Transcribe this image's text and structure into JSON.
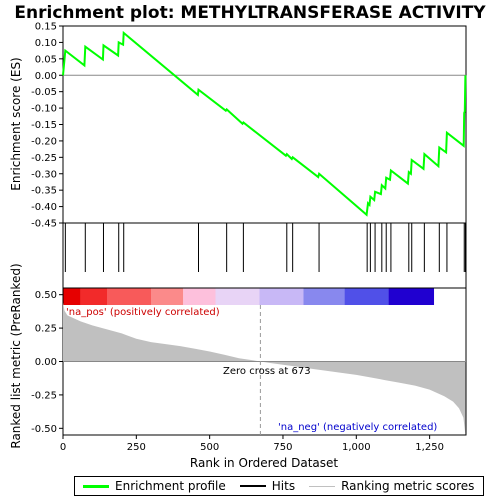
{
  "chart_data": {
    "type": "line",
    "title": "Enrichment plot: METHYLTRANSFERASE ACTIVITY",
    "es_panel": {
      "ylabel": "Enrichment score (ES)",
      "ylim": [
        -0.45,
        0.15
      ],
      "yticks": [
        "0.15",
        "0.10",
        "0.05",
        "0.00",
        "-0.05",
        "-0.10",
        "-0.15",
        "-0.20",
        "-0.25",
        "-0.30",
        "-0.35",
        "-0.40",
        "-0.45"
      ],
      "series": [
        {
          "name": "Enrichment profile",
          "color": "#00ff00",
          "x": [
            0,
            8,
            73,
            76,
            136,
            138,
            188,
            190,
            205,
            207,
            460,
            462,
            555,
            558,
            612,
            615,
            760,
            763,
            780,
            783,
            870,
            873,
            1035,
            1037,
            1040,
            1045,
            1048,
            1061,
            1064,
            1084,
            1087,
            1099,
            1102,
            1115,
            1118,
            1176,
            1179,
            1186,
            1189,
            1229,
            1232,
            1280,
            1283,
            1306,
            1309,
            1366,
            1368,
            1370,
            1372
          ],
          "y": [
            0.0,
            0.075,
            0.03,
            0.087,
            0.048,
            0.091,
            0.06,
            0.1,
            0.093,
            0.129,
            -0.06,
            -0.044,
            -0.108,
            -0.104,
            -0.148,
            -0.144,
            -0.245,
            -0.24,
            -0.255,
            -0.25,
            -0.31,
            -0.3,
            -0.425,
            -0.41,
            -0.39,
            -0.395,
            -0.37,
            -0.38,
            -0.355,
            -0.362,
            -0.335,
            -0.345,
            -0.312,
            -0.318,
            -0.29,
            -0.33,
            -0.295,
            -0.3,
            -0.258,
            -0.285,
            -0.24,
            -0.277,
            -0.22,
            -0.235,
            -0.175,
            -0.215,
            -0.115,
            -0.11,
            0.0
          ]
        }
      ]
    },
    "hits": {
      "name": "Hits",
      "positions": [
        8,
        76,
        138,
        190,
        207,
        462,
        558,
        615,
        763,
        783,
        873,
        1037,
        1048,
        1064,
        1087,
        1102,
        1118,
        1179,
        1189,
        1232,
        1283,
        1309,
        1368,
        1372
      ]
    },
    "color_bar": {
      "colors": [
        "#e60000",
        "#f22a2a",
        "#f85a5a",
        "#fb8a8a",
        "#fdc0dc",
        "#e8d4f6",
        "#c8b8f6",
        "#8888ee",
        "#5050e8",
        "#2000d0"
      ],
      "boundaries": [
        0,
        60,
        150,
        300,
        410,
        520,
        670,
        820,
        960,
        1110,
        1265,
        1374
      ]
    },
    "metric_panel": {
      "name": "Ranking metric scores",
      "ylabel": "Ranked list metric (PreRanked)",
      "ylim": [
        -0.55,
        0.55
      ],
      "yticks": [
        "0.50",
        "0.25",
        "0.00",
        "-0.25",
        "-0.50"
      ],
      "points_x": [
        0,
        5,
        15,
        30,
        60,
        100,
        150,
        200,
        250,
        300,
        350,
        400,
        450,
        500,
        550,
        600,
        650,
        673,
        700,
        750,
        800,
        850,
        900,
        950,
        1000,
        1050,
        1100,
        1150,
        1200,
        1250,
        1300,
        1330,
        1350,
        1365,
        1372
      ],
      "points_y": [
        0.44,
        0.38,
        0.345,
        0.33,
        0.3,
        0.27,
        0.24,
        0.21,
        0.17,
        0.145,
        0.13,
        0.115,
        0.095,
        0.075,
        0.05,
        0.025,
        0.008,
        0.0,
        -0.01,
        -0.025,
        -0.04,
        -0.055,
        -0.07,
        -0.085,
        -0.1,
        -0.12,
        -0.14,
        -0.16,
        -0.18,
        -0.21,
        -0.26,
        -0.3,
        -0.35,
        -0.42,
        -0.55
      ],
      "zero_cross_label": "Zero cross at 673",
      "zero_cross": 673,
      "pos_label": "'na_pos' (positively correlated)",
      "neg_label": "'na_neg' (negatively correlated)"
    },
    "xlabel": "Rank in Ordered Dataset",
    "xlim": [
      0,
      1374
    ],
    "xticks": [
      0,
      250,
      500,
      750,
      1000,
      1250
    ],
    "xtick_labels": [
      "0",
      "250",
      "500",
      "750",
      "1,000",
      "1,250"
    ]
  },
  "legend": {
    "items": [
      {
        "label": "Enrichment profile",
        "color": "#00ff00"
      },
      {
        "label": "Hits",
        "color": "#000000"
      },
      {
        "label": "Ranking metric scores",
        "color": "#c0c0c0"
      }
    ]
  }
}
